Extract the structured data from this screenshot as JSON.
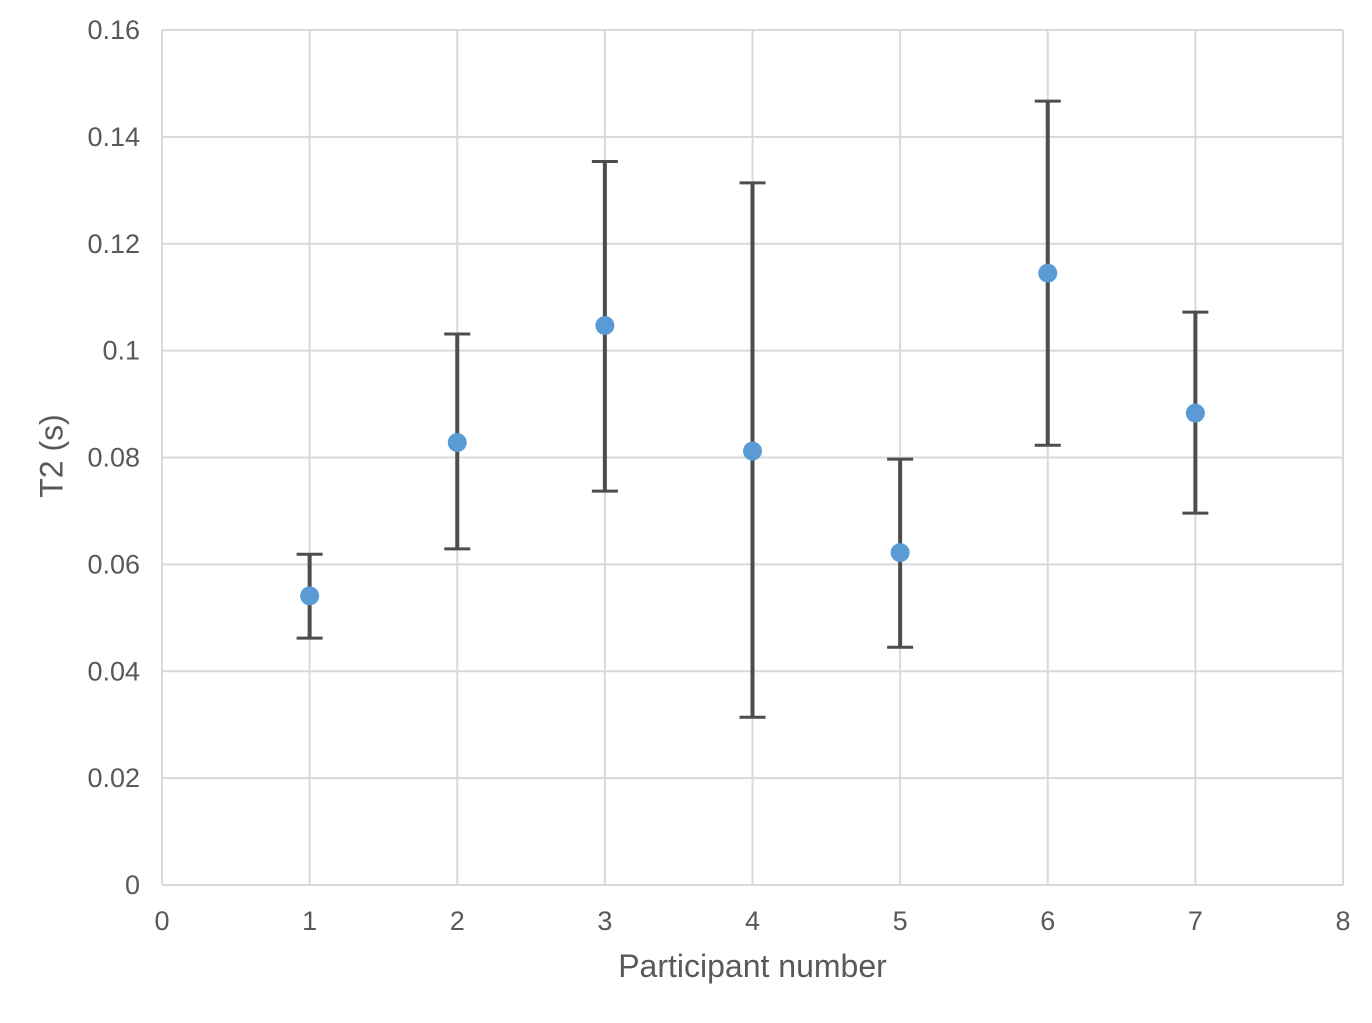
{
  "chart_data": {
    "type": "scatter",
    "title": "",
    "xlabel": "Participant number",
    "ylabel": "T2 (s)",
    "xlim": [
      0,
      8
    ],
    "ylim": [
      0,
      0.16
    ],
    "grid": true,
    "legend": false,
    "x_ticks": [
      {
        "label": "0",
        "value": 0
      },
      {
        "label": "1",
        "value": 1
      },
      {
        "label": "2",
        "value": 2
      },
      {
        "label": "3",
        "value": 3
      },
      {
        "label": "4",
        "value": 4
      },
      {
        "label": "5",
        "value": 5
      },
      {
        "label": "6",
        "value": 6
      },
      {
        "label": "7",
        "value": 7
      },
      {
        "label": "8",
        "value": 8
      }
    ],
    "y_ticks": [
      {
        "label": "0",
        "value": 0
      },
      {
        "label": "0.02",
        "value": 0.02
      },
      {
        "label": "0.04",
        "value": 0.04
      },
      {
        "label": "0.06",
        "value": 0.06
      },
      {
        "label": "0.08",
        "value": 0.08
      },
      {
        "label": "0.1",
        "value": 0.1
      },
      {
        "label": "0.12",
        "value": 0.12
      },
      {
        "label": "0.14",
        "value": 0.14
      },
      {
        "label": "0.16",
        "value": 0.16
      }
    ],
    "points": [
      {
        "x": 1,
        "y": 0.0541,
        "err_low": 0.0462,
        "err_high": 0.0619
      },
      {
        "x": 2,
        "y": 0.0828,
        "err_low": 0.0629,
        "err_high": 0.1031
      },
      {
        "x": 3,
        "y": 0.1047,
        "err_low": 0.0737,
        "err_high": 0.1354
      },
      {
        "x": 4,
        "y": 0.0812,
        "err_low": 0.0314,
        "err_high": 0.1314
      },
      {
        "x": 5,
        "y": 0.0622,
        "err_low": 0.0445,
        "err_high": 0.0797
      },
      {
        "x": 6,
        "y": 0.1145,
        "err_low": 0.0823,
        "err_high": 0.1467
      },
      {
        "x": 7,
        "y": 0.0883,
        "err_low": 0.0696,
        "err_high": 0.1072
      }
    ],
    "colors": {
      "marker": "#5B9BD5",
      "error_bar": "#4d4d4d",
      "gridline": "#D9D9D9",
      "tick_text": "#595959",
      "axis_title_text": "#595959",
      "background": "#ffffff"
    }
  }
}
